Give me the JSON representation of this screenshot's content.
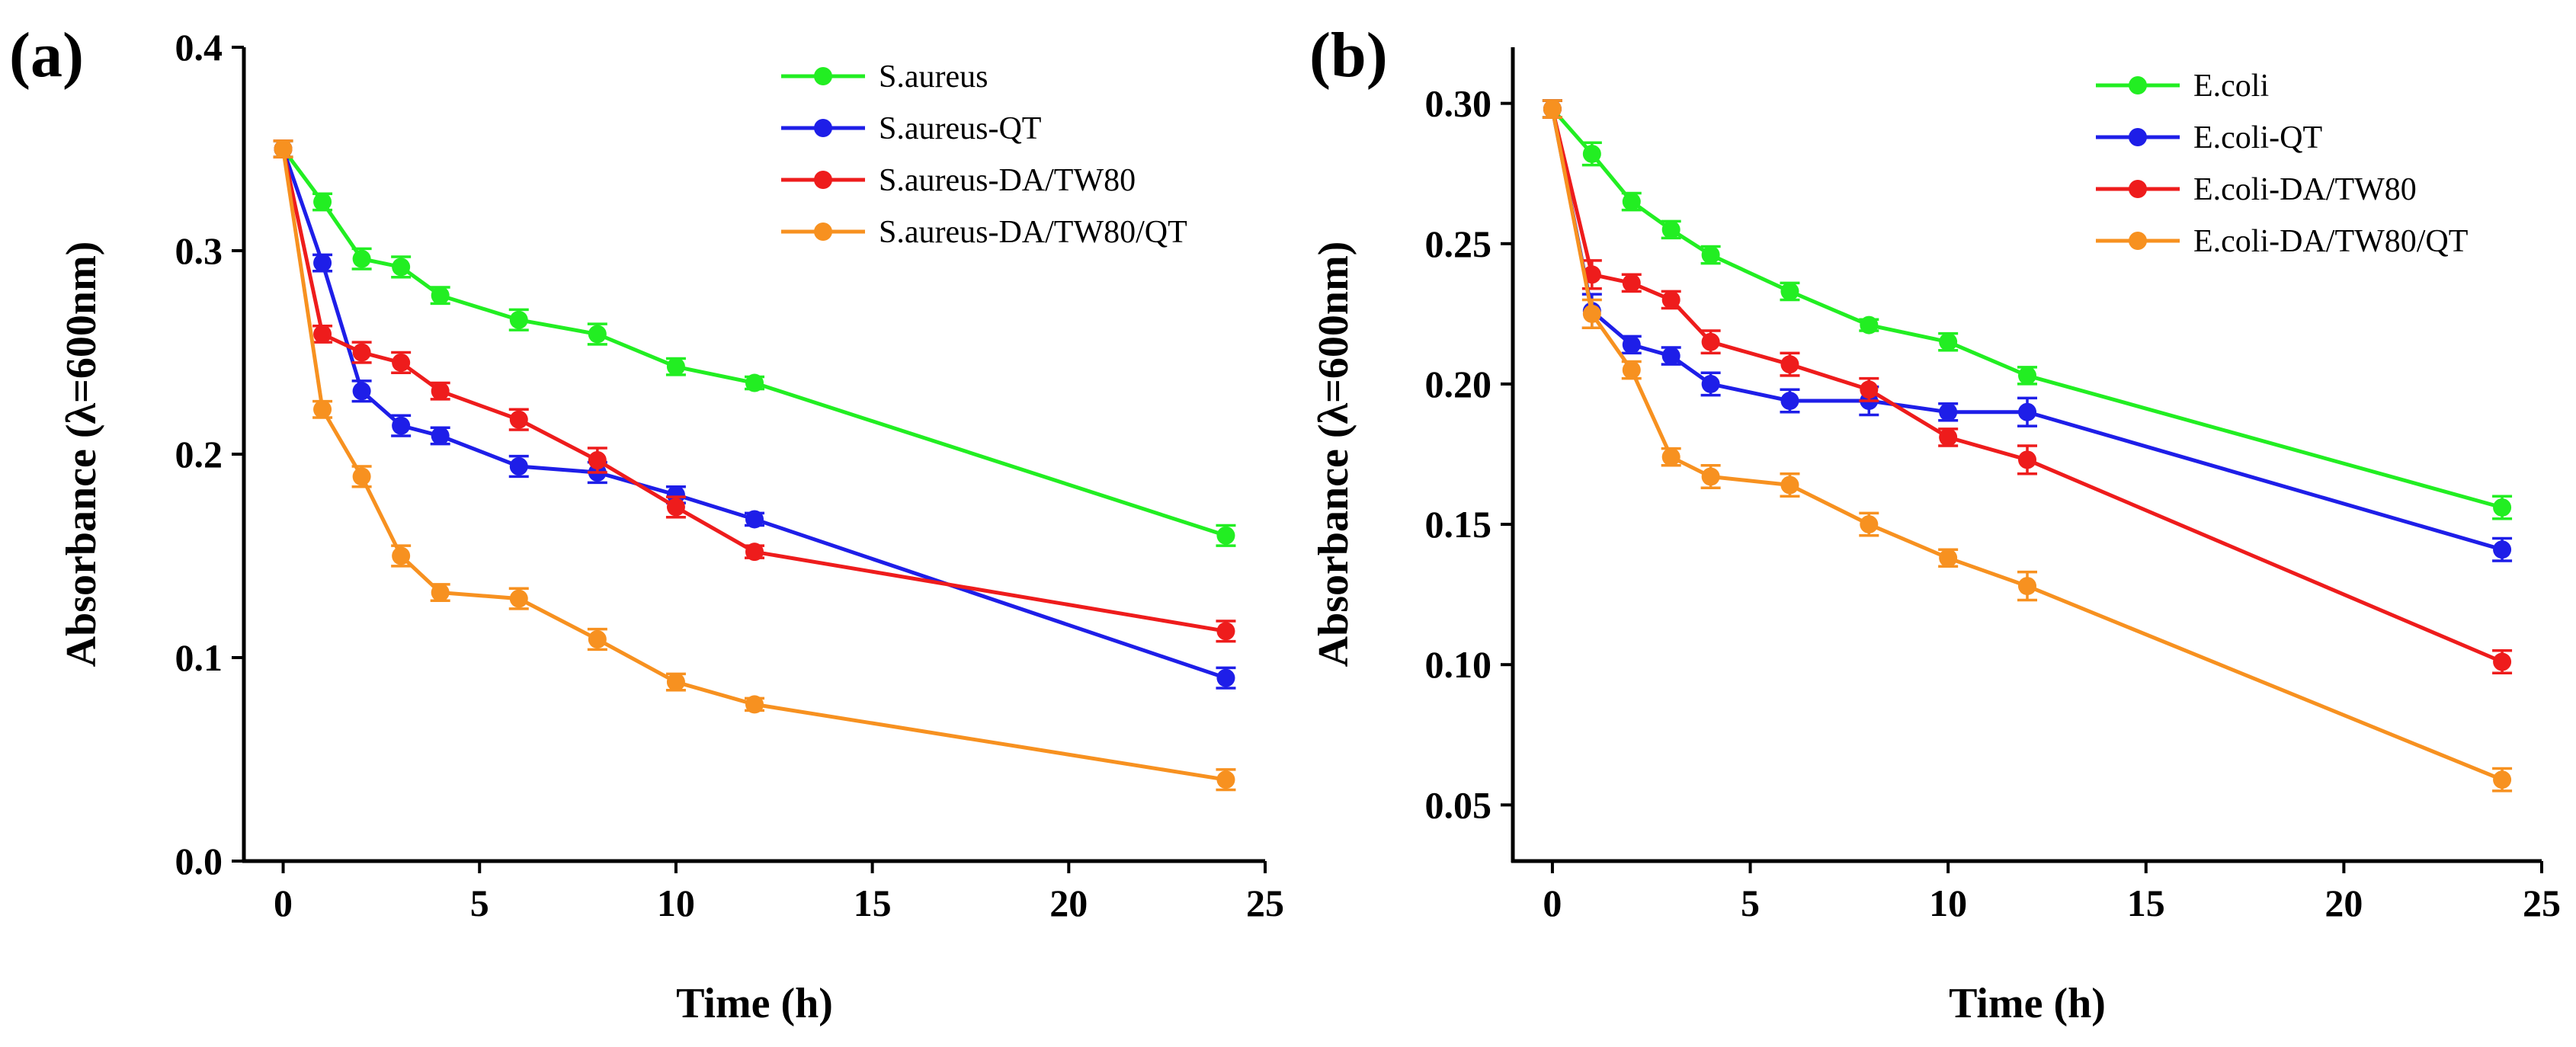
{
  "chart_data": [
    {
      "type": "line",
      "panel_label": "(a)",
      "xlabel": "Time (h)",
      "ylabel": "Absorbance (λ=600nm)",
      "xlim": [
        -1,
        25
      ],
      "ylim": [
        0.0,
        0.4
      ],
      "xticks": [
        0,
        5,
        10,
        15,
        20,
        25
      ],
      "xtick_labels": [
        "0",
        "5",
        "10",
        "15",
        "20",
        "25"
      ],
      "yticks": [
        0.0,
        0.1,
        0.2,
        0.3,
        0.4
      ],
      "ytick_labels": [
        "0.0",
        "0.1",
        "0.2",
        "0.3",
        "0.4"
      ],
      "legend_position": "top-right",
      "x": [
        0,
        1,
        2,
        3,
        4,
        6,
        8,
        10,
        12,
        24
      ],
      "series": [
        {
          "name": "S.aureus",
          "color": "#22ee22",
          "values": [
            0.35,
            0.324,
            0.296,
            0.292,
            0.278,
            0.266,
            0.259,
            0.243,
            0.235,
            0.16
          ],
          "errors": [
            0.004,
            0.004,
            0.005,
            0.005,
            0.004,
            0.005,
            0.005,
            0.004,
            0.003,
            0.005
          ]
        },
        {
          "name": "S.aureus-QT",
          "color": "#1e1ee8",
          "values": [
            0.35,
            0.294,
            0.231,
            0.214,
            0.209,
            0.194,
            0.191,
            0.18,
            0.168,
            0.09
          ],
          "errors": [
            0.004,
            0.004,
            0.005,
            0.005,
            0.004,
            0.005,
            0.005,
            0.004,
            0.003,
            0.005
          ]
        },
        {
          "name": "S.aureus-DA/TW80",
          "color": "#ee1c1c",
          "values": [
            0.35,
            0.259,
            0.25,
            0.245,
            0.231,
            0.217,
            0.197,
            0.174,
            0.152,
            0.113
          ],
          "errors": [
            0.004,
            0.004,
            0.005,
            0.005,
            0.004,
            0.005,
            0.006,
            0.005,
            0.003,
            0.005
          ]
        },
        {
          "name": "S.aureus-DA/TW80/QT",
          "color": "#f79120",
          "values": [
            0.35,
            0.222,
            0.189,
            0.15,
            0.132,
            0.129,
            0.109,
            0.088,
            0.077,
            0.04
          ],
          "errors": [
            0.004,
            0.004,
            0.005,
            0.005,
            0.004,
            0.005,
            0.005,
            0.004,
            0.003,
            0.005
          ]
        }
      ]
    },
    {
      "type": "line",
      "panel_label": "(b)",
      "xlabel": "Time (h)",
      "ylabel": "Absorbance (λ=600nm)",
      "xlim": [
        -1,
        25
      ],
      "ylim": [
        0.03,
        0.32
      ],
      "xticks": [
        0,
        5,
        10,
        15,
        20,
        25
      ],
      "xtick_labels": [
        "0",
        "5",
        "10",
        "15",
        "20",
        "25"
      ],
      "yticks": [
        0.05,
        0.1,
        0.15,
        0.2,
        0.25,
        0.3
      ],
      "ytick_labels": [
        "0.05",
        "0.10",
        "0.15",
        "0.20",
        "0.25",
        "0.30"
      ],
      "legend_position": "top-right",
      "x": [
        0,
        1,
        2,
        3,
        4,
        6,
        8,
        10,
        12,
        24
      ],
      "series": [
        {
          "name": "E.coli",
          "color": "#22ee22",
          "values": [
            0.298,
            0.282,
            0.265,
            0.255,
            0.246,
            0.233,
            0.221,
            0.215,
            0.203,
            0.156
          ],
          "errors": [
            0.003,
            0.004,
            0.003,
            0.003,
            0.003,
            0.003,
            0.002,
            0.003,
            0.003,
            0.004
          ]
        },
        {
          "name": "E.coli-QT",
          "color": "#1e1ee8",
          "values": [
            0.298,
            0.226,
            0.214,
            0.21,
            0.2,
            0.194,
            0.194,
            0.19,
            0.19,
            0.141
          ],
          "errors": [
            0.003,
            0.006,
            0.003,
            0.003,
            0.004,
            0.004,
            0.005,
            0.003,
            0.005,
            0.004
          ]
        },
        {
          "name": "E.coli-DA/TW80",
          "color": "#ee1c1c",
          "values": [
            0.298,
            0.239,
            0.236,
            0.23,
            0.215,
            0.207,
            0.198,
            0.181,
            0.173,
            0.101
          ],
          "errors": [
            0.003,
            0.005,
            0.003,
            0.003,
            0.004,
            0.004,
            0.004,
            0.003,
            0.005,
            0.004
          ]
        },
        {
          "name": "E.coli-DA/TW80/QT",
          "color": "#f79120",
          "values": [
            0.298,
            0.225,
            0.205,
            0.174,
            0.167,
            0.164,
            0.15,
            0.138,
            0.128,
            0.059
          ],
          "errors": [
            0.003,
            0.005,
            0.003,
            0.003,
            0.004,
            0.004,
            0.004,
            0.003,
            0.005,
            0.004
          ]
        }
      ]
    }
  ]
}
